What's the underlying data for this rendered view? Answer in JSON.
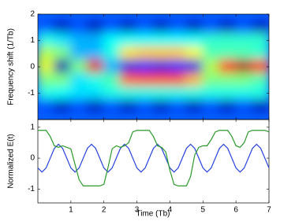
{
  "chart_data": [
    {
      "type": "heatmap",
      "ylabel": "Frequency shift (1/Tb)",
      "colormap": "jet",
      "x": [
        0.25,
        0.75,
        1.25,
        1.75,
        2.25,
        2.75,
        3.25,
        3.75,
        4.25,
        4.75,
        5.25,
        5.75,
        6.25,
        6.75
      ],
      "y": [
        2,
        1.5,
        1,
        0.5,
        0,
        -0.5,
        -1,
        -1.5,
        -2
      ],
      "z": [
        [
          0.22,
          0.22,
          0.22,
          0.22,
          0.22,
          0.22,
          0.22,
          0.22,
          0.22,
          0.22,
          0.22,
          0.22,
          0.22,
          0.22
        ],
        [
          0.2,
          0.06,
          0.2,
          0.06,
          0.2,
          0.06,
          0.2,
          0.06,
          0.2,
          0.06,
          0.2,
          0.06,
          0.2,
          0.06
        ],
        [
          0.4,
          0.35,
          0.3,
          0.3,
          0.38,
          0.38,
          0.38,
          0.38,
          0.38,
          0.38,
          0.42,
          0.42,
          0.42,
          0.42
        ],
        [
          0.55,
          0.5,
          0.3,
          0.3,
          0.4,
          0.65,
          0.68,
          0.68,
          0.68,
          0.62,
          0.45,
          0.45,
          0.45,
          0.42
        ],
        [
          0.6,
          0.05,
          0.5,
          0.9,
          0.3,
          0.1,
          0.15,
          0.1,
          0.15,
          0.1,
          0.55,
          0.85,
          0.95,
          0.85
        ],
        [
          0.5,
          0.5,
          0.35,
          0.4,
          0.45,
          0.78,
          0.8,
          0.8,
          0.8,
          0.7,
          0.5,
          0.5,
          0.5,
          0.45
        ],
        [
          0.4,
          0.38,
          0.35,
          0.35,
          0.4,
          0.4,
          0.4,
          0.4,
          0.4,
          0.4,
          0.4,
          0.4,
          0.4,
          0.4
        ],
        [
          0.2,
          0.06,
          0.2,
          0.06,
          0.2,
          0.06,
          0.2,
          0.06,
          0.2,
          0.06,
          0.2,
          0.06,
          0.2,
          0.06
        ],
        [
          0.22,
          0.22,
          0.22,
          0.22,
          0.22,
          0.22,
          0.22,
          0.22,
          0.22,
          0.22,
          0.22,
          0.22,
          0.22,
          0.22
        ]
      ],
      "xlim": [
        0,
        7
      ],
      "xticks": [
        1,
        2,
        3,
        4,
        5,
        6,
        7
      ],
      "ylim": [
        -2,
        2
      ],
      "yticks": [
        -1,
        0,
        1,
        2
      ]
    },
    {
      "type": "line",
      "xlabel": "Time (Tb)",
      "ylabel": "Normalized E(t)",
      "x": [
        0,
        0.125,
        0.25,
        0.375,
        0.5,
        0.625,
        0.75,
        0.875,
        1,
        1.125,
        1.25,
        1.375,
        1.5,
        1.625,
        1.75,
        1.875,
        2,
        2.125,
        2.25,
        2.375,
        2.5,
        2.625,
        2.75,
        2.875,
        3,
        3.125,
        3.25,
        3.375,
        3.5,
        3.625,
        3.75,
        3.875,
        4,
        4.125,
        4.25,
        4.375,
        4.5,
        4.625,
        4.75,
        4.875,
        5,
        5.125,
        5.25,
        5.375,
        5.5,
        5.625,
        5.75,
        5.875,
        6,
        6.125,
        6.25,
        6.375,
        6.5,
        6.625,
        6.75,
        6.875,
        7
      ],
      "series": [
        {
          "color": "#2340e0",
          "values": [
            -0.318,
            -0.45,
            -0.318,
            0,
            0.318,
            0.45,
            0.318,
            0,
            -0.318,
            -0.45,
            -0.318,
            0,
            0.318,
            0.45,
            0.318,
            0,
            -0.318,
            -0.45,
            -0.318,
            0,
            0.318,
            0.45,
            0.318,
            0,
            -0.318,
            -0.45,
            -0.318,
            0,
            0.318,
            0.45,
            0.318,
            0,
            -0.318,
            -0.45,
            -0.318,
            0,
            0.318,
            0.45,
            0.318,
            0,
            -0.318,
            -0.45,
            -0.318,
            0,
            0.318,
            0.45,
            0.318,
            0,
            -0.318,
            -0.45,
            -0.318,
            0,
            0.318,
            0.45,
            0.318,
            0,
            -0.318
          ]
        },
        {
          "color": "#2b9a2b",
          "values": [
            0.9,
            0.9,
            0.9,
            0.7,
            0.4,
            0.35,
            0.4,
            0.35,
            0.3,
            -0.2,
            -0.7,
            -0.9,
            -0.9,
            -0.9,
            -0.9,
            -0.9,
            -0.85,
            -0.3,
            0.3,
            0.4,
            0.35,
            0.4,
            0.5,
            0.85,
            0.9,
            0.9,
            0.9,
            0.9,
            0.7,
            0.4,
            0.35,
            0.2,
            -0.4,
            -0.85,
            -0.9,
            -0.9,
            -0.9,
            -0.6,
            0.1,
            0.35,
            0.4,
            0.4,
            0.6,
            0.85,
            0.9,
            0.9,
            0.9,
            0.7,
            0.4,
            0.35,
            0.5,
            0.85,
            0.9,
            0.9,
            0.9,
            0.9,
            0.85
          ]
        }
      ],
      "xlim": [
        0,
        7
      ],
      "xticks": [
        1,
        2,
        3,
        4,
        5,
        6,
        7
      ],
      "ylim": [
        -1.45,
        1.25
      ],
      "yticks": [
        -1,
        0,
        1
      ]
    }
  ]
}
